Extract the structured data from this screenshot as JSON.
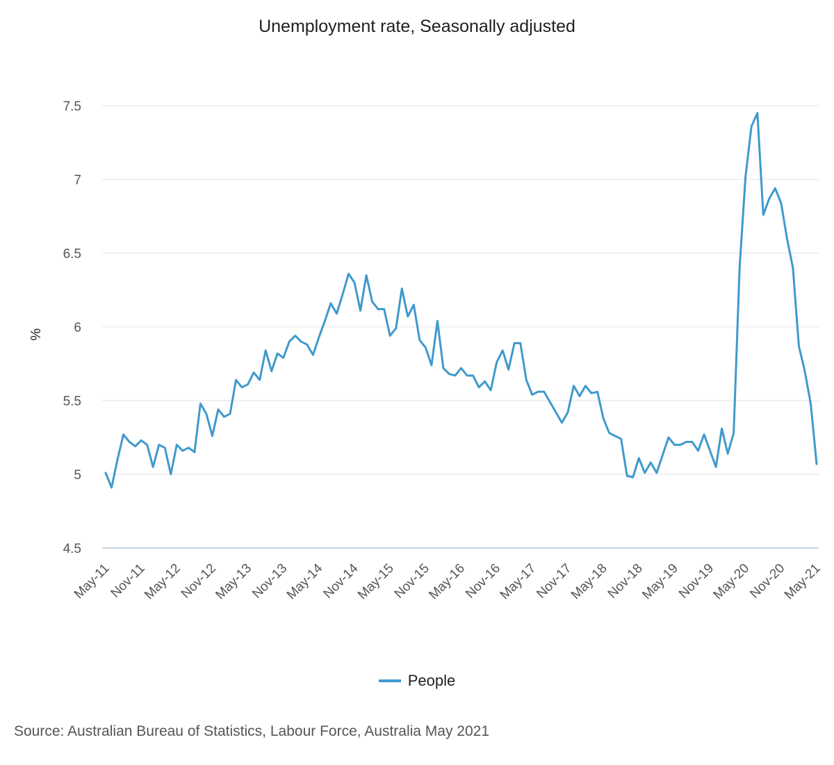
{
  "chart_data": {
    "type": "line",
    "title": "Unemployment rate, Seasonally adjusted",
    "xlabel": "",
    "ylabel": "%",
    "ylim": [
      4.5,
      7.5
    ],
    "yticks": [
      "4.5",
      "5",
      "5.5",
      "6",
      "6.5",
      "7",
      "7.5"
    ],
    "x_tick_labels": [
      "May-11",
      "Nov-11",
      "May-12",
      "Nov-12",
      "May-13",
      "Nov-13",
      "May-14",
      "Nov-14",
      "May-15",
      "Nov-15",
      "May-16",
      "Nov-16",
      "May-17",
      "Nov-17",
      "May-18",
      "Nov-18",
      "May-19",
      "Nov-19",
      "May-20",
      "Nov-20",
      "May-21"
    ],
    "x_start": "May-11",
    "x_end": "May-21",
    "grid": true,
    "legend_position": "bottom",
    "color": "#3f99cc",
    "series": [
      {
        "name": "People",
        "values": [
          5.01,
          4.91,
          5.1,
          5.27,
          5.22,
          5.19,
          5.23,
          5.2,
          5.05,
          5.2,
          5.18,
          5.0,
          5.2,
          5.16,
          5.18,
          5.15,
          5.48,
          5.41,
          5.26,
          5.44,
          5.39,
          5.41,
          5.64,
          5.59,
          5.61,
          5.69,
          5.64,
          5.84,
          5.7,
          5.82,
          5.79,
          5.9,
          5.94,
          5.9,
          5.88,
          5.81,
          5.93,
          6.04,
          6.16,
          6.09,
          6.22,
          6.36,
          6.3,
          6.11,
          6.35,
          6.17,
          6.12,
          6.12,
          5.94,
          5.99,
          6.26,
          6.07,
          6.15,
          5.91,
          5.86,
          5.74,
          6.04,
          5.72,
          5.68,
          5.67,
          5.72,
          5.67,
          5.67,
          5.59,
          5.63,
          5.57,
          5.76,
          5.84,
          5.71,
          5.89,
          5.89,
          5.64,
          5.54,
          5.56,
          5.56,
          5.49,
          5.42,
          5.35,
          5.42,
          5.6,
          5.53,
          5.6,
          5.55,
          5.56,
          5.38,
          5.28,
          5.26,
          5.24,
          4.99,
          4.98,
          5.11,
          5.01,
          5.08,
          5.01,
          5.13,
          5.25,
          5.2,
          5.2,
          5.22,
          5.22,
          5.16,
          5.27,
          5.16,
          5.05,
          5.31,
          5.14,
          5.28,
          6.4,
          7.02,
          7.36,
          7.45,
          6.76,
          6.87,
          6.94,
          6.84,
          6.6,
          6.4,
          5.87,
          5.7,
          5.48,
          5.07
        ]
      }
    ]
  },
  "source_text": "Source: Australian Bureau of Statistics, Labour Force, Australia May 2021"
}
